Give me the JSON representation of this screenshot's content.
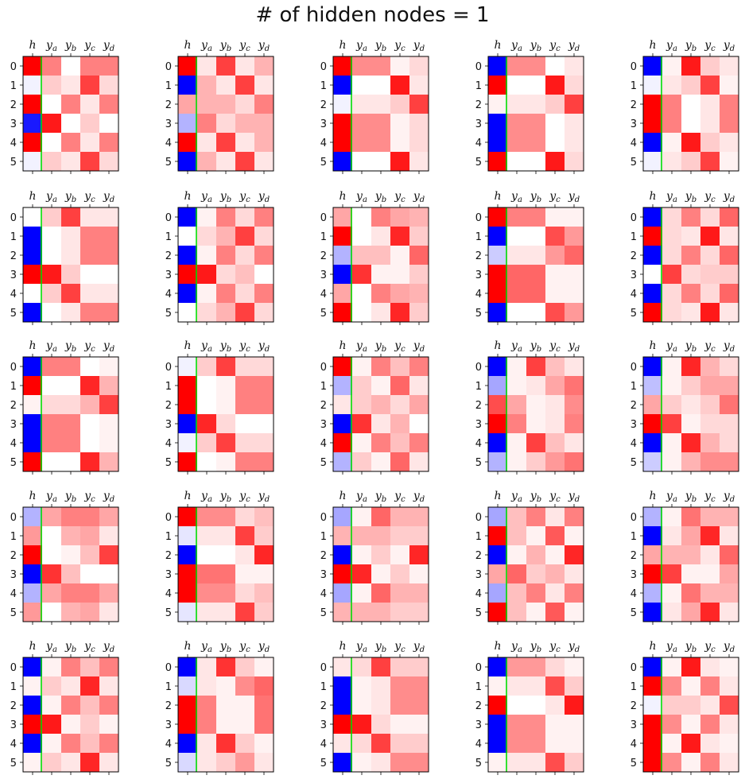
{
  "title": "# of hidden nodes = 1",
  "colors": {
    "positive": "#ff0000",
    "negative": "#0000ff",
    "neutral": "#ffffff",
    "separator": "#00dd00",
    "frame": "#000000"
  },
  "chart_data": {
    "type": "heatmap",
    "colormap": "bwr",
    "value_range": [
      -1,
      1
    ],
    "grid_layout": {
      "rows": 5,
      "cols": 5
    },
    "x_tick_labels": [
      {
        "base": "h",
        "sub": ""
      },
      {
        "base": "y",
        "sub": "a"
      },
      {
        "base": "y",
        "sub": "b"
      },
      {
        "base": "y",
        "sub": "c"
      },
      {
        "base": "y",
        "sub": "d"
      }
    ],
    "y_tick_labels": [
      "0",
      "1",
      "2",
      "3",
      "4",
      "5"
    ],
    "separator_after_column": 0,
    "panels": [
      {
        "cells": [
          [
            1,
            0.5,
            0,
            0.5,
            0.5
          ],
          [
            -0.05,
            0.2,
            0.1,
            0.75,
            0.15
          ],
          [
            1,
            0,
            0.5,
            0.1,
            0.5
          ],
          [
            -0.9,
            0.9,
            0,
            0.2,
            0
          ],
          [
            1,
            0,
            0.5,
            0.1,
            0.5
          ],
          [
            -0.05,
            0.2,
            0.1,
            0.75,
            0.15
          ]
        ]
      },
      {
        "cells": [
          [
            1,
            0.1,
            0.75,
            0.1,
            0.3
          ],
          [
            -1,
            0.3,
            0.1,
            0.75,
            0.1
          ],
          [
            0.35,
            0.3,
            0.3,
            0.15,
            0.5
          ],
          [
            -0.3,
            0.5,
            0.15,
            0.3,
            0.3
          ],
          [
            1,
            0.1,
            0.75,
            0.1,
            0.3
          ],
          [
            -1,
            0.3,
            0.1,
            0.75,
            0.1
          ]
        ]
      },
      {
        "cells": [
          [
            1,
            0.45,
            0.45,
            0.05,
            0.15
          ],
          [
            -1,
            0,
            0,
            0.9,
            0.1
          ],
          [
            -0.05,
            0.1,
            0.1,
            0.2,
            0.75
          ],
          [
            1,
            0.45,
            0.45,
            0.05,
            0.15
          ],
          [
            1,
            0.45,
            0.45,
            0.05,
            0.15
          ],
          [
            -1,
            0,
            0,
            0.9,
            0.1
          ]
        ]
      },
      {
        "cells": [
          [
            -1,
            0.45,
            0.45,
            0,
            0.1
          ],
          [
            1,
            0,
            0,
            0.9,
            0.15
          ],
          [
            0.05,
            0.1,
            0.1,
            0.2,
            0.75
          ],
          [
            -1,
            0.45,
            0.45,
            0,
            0.1
          ],
          [
            -1,
            0.45,
            0.45,
            0,
            0.1
          ],
          [
            1,
            0,
            0,
            0.9,
            0.15
          ]
        ]
      },
      {
        "cells": [
          [
            -1,
            0.05,
            0.9,
            0.2,
            0.1
          ],
          [
            -0.05,
            0.1,
            0.2,
            0.75,
            0.05
          ],
          [
            1,
            0.5,
            0,
            0.1,
            0.5
          ],
          [
            1,
            0.5,
            0,
            0.1,
            0.5
          ],
          [
            -1,
            0.05,
            0.9,
            0.2,
            0.1
          ],
          [
            -0.05,
            0.1,
            0.2,
            0.75,
            0.05
          ]
        ]
      },
      {
        "cells": [
          [
            0,
            0.2,
            0.75,
            0.1,
            0.1
          ],
          [
            -1,
            0,
            0.1,
            0.5,
            0.5
          ],
          [
            -1,
            0,
            0.1,
            0.5,
            0.5
          ],
          [
            1,
            0.9,
            0.2,
            0,
            0
          ],
          [
            0,
            0.2,
            0.75,
            0.1,
            0.1
          ],
          [
            -1,
            0,
            0.1,
            0.5,
            0.5
          ]
        ]
      },
      {
        "cells": [
          [
            -1,
            0.05,
            0.5,
            0.15,
            0.5
          ],
          [
            0,
            0.15,
            0.3,
            0.75,
            0.15
          ],
          [
            -1,
            0.05,
            0.5,
            0.15,
            0.5
          ],
          [
            1,
            0.9,
            0.15,
            0.25,
            0
          ],
          [
            -1,
            0.05,
            0.5,
            0.15,
            0.5
          ],
          [
            0,
            0.15,
            0.3,
            0.75,
            0.15
          ]
        ]
      },
      {
        "cells": [
          [
            0.35,
            0,
            0.5,
            0.35,
            0.3
          ],
          [
            1,
            0,
            0.1,
            0.85,
            0.2
          ],
          [
            -0.3,
            0.25,
            0.25,
            0.05,
            0.6
          ],
          [
            -1,
            0.8,
            0.05,
            0.05,
            0.2
          ],
          [
            0.35,
            0,
            0.5,
            0.35,
            0.3
          ],
          [
            1,
            0,
            0.1,
            0.85,
            0.2
          ]
        ]
      },
      {
        "cells": [
          [
            1,
            0.5,
            0.5,
            0.05,
            0.05
          ],
          [
            -1,
            0,
            0,
            0.7,
            0.4
          ],
          [
            -0.2,
            0.1,
            0.1,
            0.4,
            0.6
          ],
          [
            1,
            0.6,
            0.6,
            0.05,
            0.05
          ],
          [
            1,
            0.6,
            0.6,
            0.05,
            0.05
          ],
          [
            -1,
            0,
            0,
            0.7,
            0.4
          ]
        ]
      },
      {
        "cells": [
          [
            -1,
            0.15,
            0.5,
            0.15,
            0.6
          ],
          [
            1,
            0.15,
            0.1,
            0.9,
            0.1
          ],
          [
            -1,
            0.15,
            0.5,
            0.15,
            0.6
          ],
          [
            0,
            0.75,
            0.15,
            0.2,
            0.2
          ],
          [
            -1,
            0.15,
            0.5,
            0.15,
            0.6
          ],
          [
            1,
            0.15,
            0.1,
            0.9,
            0.1
          ]
        ]
      },
      {
        "cells": [
          [
            -1,
            0.5,
            0.5,
            0,
            0.05
          ],
          [
            1,
            0,
            0,
            0.85,
            0.3
          ],
          [
            0.05,
            0.15,
            0.15,
            0.3,
            0.75
          ],
          [
            -1,
            0.5,
            0.5,
            0,
            0.05
          ],
          [
            -1,
            0.5,
            0.5,
            0,
            0.05
          ],
          [
            1,
            0,
            0,
            0.85,
            0.3
          ]
        ]
      },
      {
        "cells": [
          [
            -0.05,
            0.2,
            0.75,
            0.15,
            0.15
          ],
          [
            1,
            0,
            0.05,
            0.5,
            0.5
          ],
          [
            1,
            0,
            0.05,
            0.5,
            0.5
          ],
          [
            -1,
            0.85,
            0.15,
            0,
            0
          ],
          [
            -0.05,
            0.2,
            0.75,
            0.15,
            0.15
          ],
          [
            1,
            0,
            0.05,
            0.5,
            0.5
          ]
        ]
      },
      {
        "cells": [
          [
            1,
            0.05,
            0.5,
            0.25,
            0.5
          ],
          [
            -0.3,
            0.2,
            0.05,
            0.6,
            0.1
          ],
          [
            0.1,
            0.2,
            0.3,
            0.15,
            0.35
          ],
          [
            -1,
            0.8,
            0.1,
            0.3,
            0
          ],
          [
            1,
            0.05,
            0.5,
            0.25,
            0.5
          ],
          [
            -0.3,
            0.2,
            0.05,
            0.6,
            0.1
          ]
        ]
      },
      {
        "cells": [
          [
            -1,
            0.05,
            0.75,
            0.25,
            0.1
          ],
          [
            -0.35,
            0.05,
            0.1,
            0.35,
            0.55
          ],
          [
            0.7,
            0.35,
            0.05,
            0.1,
            0.45
          ],
          [
            1,
            0.5,
            0.05,
            0.1,
            0.5
          ],
          [
            -1,
            0.05,
            0.75,
            0.25,
            0.1
          ],
          [
            -0.3,
            0.05,
            0.2,
            0.4,
            0.55
          ]
        ]
      },
      {
        "cells": [
          [
            -1,
            0.05,
            0.85,
            0.3,
            0.15
          ],
          [
            -0.25,
            0.05,
            0.2,
            0.35,
            0.35
          ],
          [
            0.35,
            0.2,
            0.1,
            0.2,
            0.55
          ],
          [
            1,
            0.75,
            0.05,
            0.15,
            0.15
          ],
          [
            -1,
            0.05,
            0.85,
            0.3,
            0.15
          ],
          [
            -0.2,
            0.05,
            0.3,
            0.45,
            0.45
          ]
        ]
      },
      {
        "cells": [
          [
            -0.3,
            0.35,
            0.5,
            0.5,
            0.35
          ],
          [
            0.4,
            0,
            0.3,
            0.35,
            0.1
          ],
          [
            1,
            0,
            0.05,
            0.25,
            0.75
          ],
          [
            -1,
            0.8,
            0.25,
            0,
            0
          ],
          [
            -0.3,
            0.35,
            0.5,
            0.5,
            0.35
          ],
          [
            0.4,
            0,
            0.3,
            0.35,
            0.1
          ]
        ]
      },
      {
        "cells": [
          [
            1,
            0.45,
            0.45,
            0.15,
            0.25
          ],
          [
            -0.1,
            0.1,
            0.1,
            0.75,
            0.2
          ],
          [
            -1,
            0,
            0,
            0.1,
            0.85
          ],
          [
            1,
            0.55,
            0.55,
            0.05,
            0.05
          ],
          [
            1,
            0.45,
            0.45,
            0.15,
            0.25
          ],
          [
            -0.1,
            0.1,
            0.1,
            0.75,
            0.2
          ]
        ]
      },
      {
        "cells": [
          [
            -0.35,
            0.05,
            0.6,
            0.3,
            0.3
          ],
          [
            0.3,
            0.3,
            0.3,
            0.2,
            0.2
          ],
          [
            -1,
            0.05,
            0.2,
            0.05,
            0.85
          ],
          [
            1,
            0.85,
            0.05,
            0.2,
            0.05
          ],
          [
            -0.35,
            0.05,
            0.6,
            0.3,
            0.3
          ],
          [
            0.3,
            0.3,
            0.3,
            0.2,
            0.2
          ]
        ]
      },
      {
        "cells": [
          [
            -0.35,
            0.25,
            0.5,
            0.1,
            0.5
          ],
          [
            1,
            0.25,
            0.05,
            0.65,
            0.05
          ],
          [
            -1,
            0.05,
            0.3,
            0.05,
            0.85
          ],
          [
            0.35,
            0.6,
            0.2,
            0.3,
            0.1
          ],
          [
            -0.35,
            0.25,
            0.5,
            0.1,
            0.5
          ],
          [
            1,
            0.25,
            0.05,
            0.65,
            0.05
          ]
        ]
      },
      {
        "cells": [
          [
            -0.3,
            0.05,
            0.55,
            0.3,
            0.3
          ],
          [
            -1,
            0.1,
            0.35,
            0.85,
            0.1
          ],
          [
            0.35,
            0.3,
            0.3,
            0.1,
            0.6
          ],
          [
            1,
            0.75,
            0.05,
            0.05,
            0.35
          ],
          [
            -0.3,
            0.05,
            0.55,
            0.3,
            0.3
          ],
          [
            -1,
            0.1,
            0.35,
            0.85,
            0.1
          ]
        ]
      },
      {
        "cells": [
          [
            -1,
            0.05,
            0.5,
            0.25,
            0.5
          ],
          [
            0.05,
            0.2,
            0.1,
            0.85,
            0.1
          ],
          [
            -1,
            0.05,
            0.5,
            0.25,
            0.5
          ],
          [
            1,
            0.9,
            0.05,
            0.2,
            0.05
          ],
          [
            -1,
            0.05,
            0.5,
            0.25,
            0.5
          ],
          [
            0.05,
            0.2,
            0.1,
            0.85,
            0.1
          ]
        ]
      },
      {
        "cells": [
          [
            -1,
            0.1,
            0.8,
            0.2,
            0.05
          ],
          [
            -0.15,
            0.1,
            0.05,
            0.45,
            0.6
          ],
          [
            1,
            0.5,
            0.05,
            0.05,
            0.55
          ],
          [
            1,
            0.5,
            0.05,
            0.05,
            0.55
          ],
          [
            -1,
            0.1,
            0.8,
            0.2,
            0.05
          ],
          [
            -0.15,
            0.1,
            0.2,
            0.4,
            0.1
          ]
        ]
      },
      {
        "cells": [
          [
            0.1,
            0.15,
            0.75,
            0.2,
            0.2
          ],
          [
            -1,
            0.05,
            0.1,
            0.45,
            0.45
          ],
          [
            -1,
            0.05,
            0.1,
            0.45,
            0.45
          ],
          [
            1,
            0.9,
            0.15,
            0.05,
            0.05
          ],
          [
            0.1,
            0.15,
            0.75,
            0.2,
            0.2
          ],
          [
            -1,
            0.05,
            0.1,
            0.45,
            0.45
          ]
        ]
      },
      {
        "cells": [
          [
            -1,
            0.4,
            0.4,
            0.15,
            0.05
          ],
          [
            0.05,
            0.1,
            0.1,
            0.7,
            0.2
          ],
          [
            1,
            0,
            0,
            0.1,
            0.9
          ],
          [
            -1,
            0.45,
            0.45,
            0.05,
            0.05
          ],
          [
            -1,
            0.45,
            0.45,
            0.05,
            0.05
          ],
          [
            0.05,
            0.1,
            0.1,
            0.7,
            0.2
          ]
        ]
      },
      {
        "cells": [
          [
            -1,
            0.05,
            0.9,
            0.1,
            0.05
          ],
          [
            1,
            0.45,
            0.05,
            0.5,
            0.1
          ],
          [
            -0.05,
            0.2,
            0.2,
            0.1,
            0.7
          ],
          [
            1,
            0.45,
            0.05,
            0.5,
            0.1
          ],
          [
            1,
            0.05,
            0.9,
            0.1,
            0.05
          ],
          [
            1,
            0.45,
            0.05,
            0.5,
            0.1
          ]
        ]
      }
    ]
  }
}
